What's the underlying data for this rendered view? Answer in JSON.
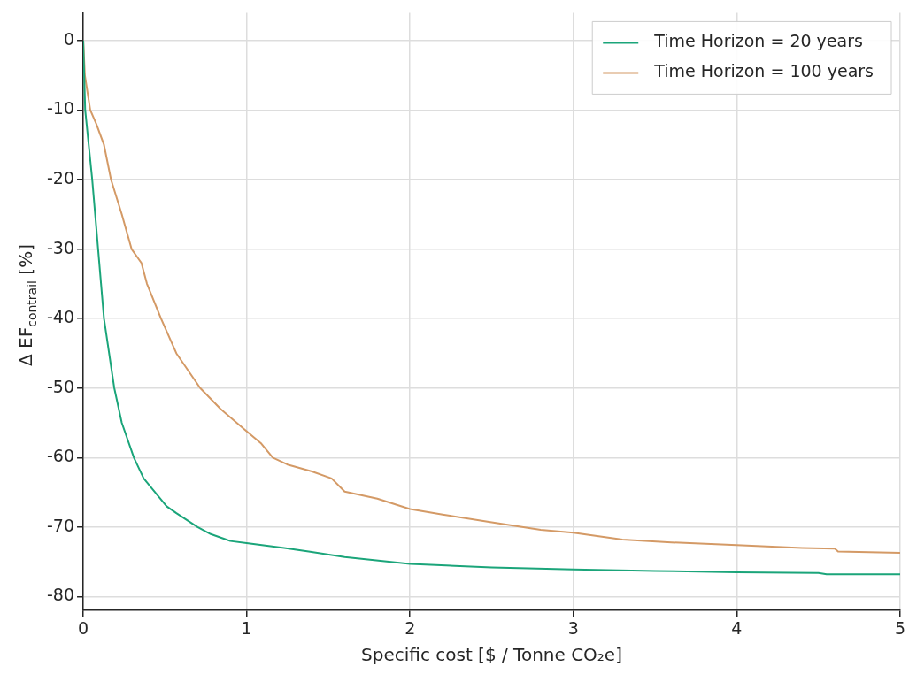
{
  "chart_data": {
    "type": "line",
    "xlabel": "Specific cost [$ / Tonne CO₂e]",
    "ylabel": "Δ EF$_{contrail}$ [%]",
    "xlim": [
      0,
      5
    ],
    "ylim": [
      -82,
      4
    ],
    "xticks": [
      0,
      1,
      2,
      3,
      4,
      5
    ],
    "yticks": [
      -80,
      -70,
      -60,
      -50,
      -40,
      -30,
      -20,
      -10,
      0
    ],
    "grid": true,
    "legend": "top right",
    "marker": "none",
    "line_style": "solid",
    "series": [
      {
        "name": "Time Horizon = 20 years",
        "color": "#1ba57a",
        "x": [
          0,
          0.012,
          0.055,
          0.091,
          0.127,
          0.19,
          0.236,
          0.31,
          0.37,
          0.44,
          0.51,
          0.57,
          0.7,
          0.78,
          0.9,
          1.0,
          1.23,
          1.38,
          1.6,
          2.0,
          2.5,
          3.0,
          3.5,
          4.0,
          4.5,
          4.55,
          5.0
        ],
        "values": [
          0,
          -10,
          -20,
          -30,
          -40,
          -50,
          -55,
          -60,
          -63,
          -65,
          -67,
          -68,
          -70,
          -71,
          -72,
          -72.3,
          -73,
          -73.5,
          -74.3,
          -75.3,
          -75.8,
          -76.1,
          -76.3,
          -76.5,
          -76.6,
          -76.8,
          -76.8
        ]
      },
      {
        "name": "Time Horizon = 100 years",
        "color": "#d49a66",
        "x": [
          0,
          0.01,
          0.043,
          0.08,
          0.127,
          0.17,
          0.236,
          0.296,
          0.356,
          0.39,
          0.476,
          0.57,
          0.716,
          0.84,
          0.99,
          1.09,
          1.16,
          1.25,
          1.4,
          1.52,
          1.6,
          1.8,
          2.0,
          2.2,
          2.5,
          2.8,
          3.0,
          3.3,
          3.6,
          4.0,
          4.4,
          4.6,
          4.62,
          5.0
        ],
        "values": [
          0,
          -5,
          -10,
          -12,
          -15,
          -20,
          -25,
          -30,
          -32,
          -35,
          -40,
          -45,
          -50,
          -53,
          -56,
          -58,
          -60,
          -61,
          -62,
          -63,
          -64.9,
          -65.9,
          -67.4,
          -68.2,
          -69.3,
          -70.4,
          -70.8,
          -71.8,
          -72.2,
          -72.6,
          -73,
          -73.1,
          -73.5,
          -73.7
        ]
      }
    ]
  }
}
